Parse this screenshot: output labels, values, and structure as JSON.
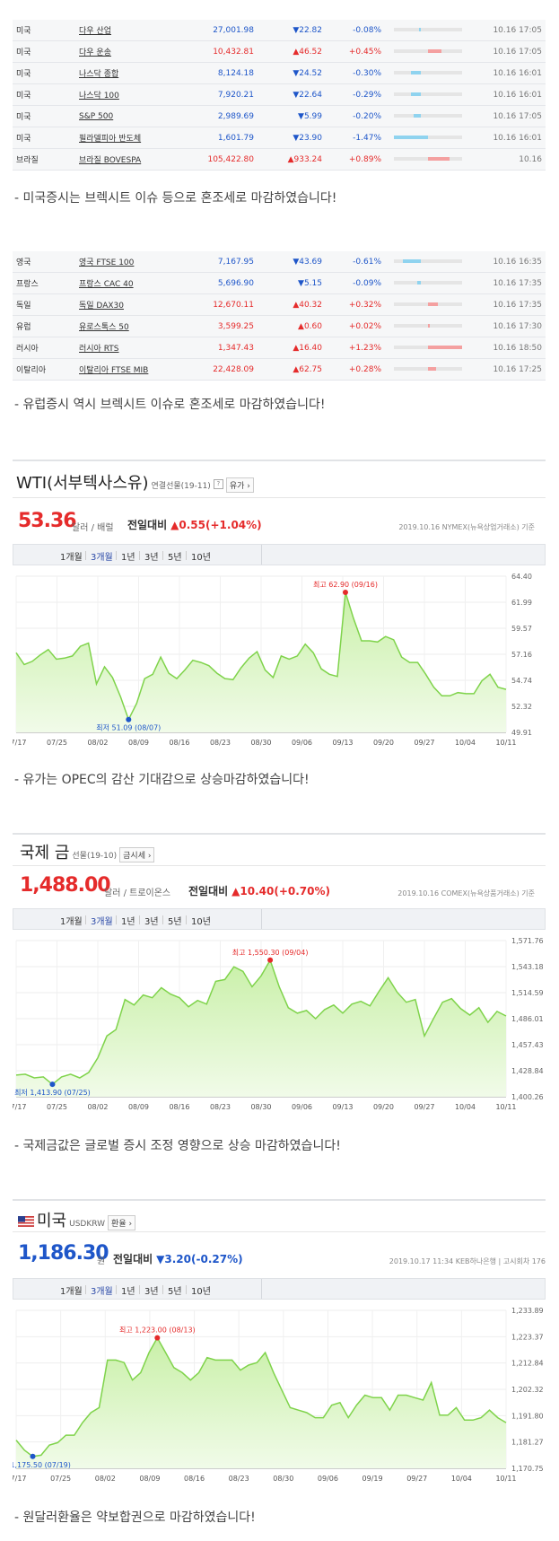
{
  "us_indices": [
    {
      "country": "미국",
      "name": "다우 산업",
      "price": "27,001.98",
      "dir": "dn",
      "change": "22.82",
      "rate": "-0.08%",
      "bar": 0.02,
      "time": "10.16 17:05"
    },
    {
      "country": "미국",
      "name": "다우 운송",
      "price": "10,432.81",
      "dir": "up",
      "change": "46.52",
      "rate": "+0.45%",
      "bar": 0.2,
      "time": "10.16 17:05"
    },
    {
      "country": "미국",
      "name": "나스닥 종합",
      "price": "8,124.18",
      "dir": "dn",
      "change": "24.52",
      "rate": "-0.30%",
      "bar": 0.14,
      "time": "10.16 16:01"
    },
    {
      "country": "미국",
      "name": "나스닥 100",
      "price": "7,920.21",
      "dir": "dn",
      "change": "22.64",
      "rate": "-0.29%",
      "bar": 0.14,
      "time": "10.16 16:01"
    },
    {
      "country": "미국",
      "name": "S&P 500",
      "price": "2,989.69",
      "dir": "dn",
      "change": "5.99",
      "rate": "-0.20%",
      "bar": 0.1,
      "time": "10.16 17:05"
    },
    {
      "country": "미국",
      "name": "필라델피아 반도체",
      "price": "1,601.79",
      "dir": "dn",
      "change": "23.90",
      "rate": "-1.47%",
      "bar": 0.5,
      "time": "10.16 16:01"
    },
    {
      "country": "브라질",
      "name": "브라질 BOVESPA",
      "price": "105,422.80",
      "dir": "up",
      "change": "933.24",
      "rate": "+0.89%",
      "bar": 0.32,
      "time": "10.16"
    }
  ],
  "comment_us": "- 미국증시는 브렉시트 이슈 등으로 혼조세로 마감하였습니다!",
  "eu_indices": [
    {
      "country": "영국",
      "name": "영국 FTSE 100",
      "price": "7,167.95",
      "dir": "dn",
      "change": "43.69",
      "rate": "-0.61%",
      "bar": 0.26,
      "time": "10.16 16:35"
    },
    {
      "country": "프랑스",
      "name": "프랑스 CAC 40",
      "price": "5,696.90",
      "dir": "dn",
      "change": "5.15",
      "rate": "-0.09%",
      "bar": 0.05,
      "time": "10.16 17:35"
    },
    {
      "country": "독일",
      "name": "독일 DAX30",
      "price": "12,670.11",
      "dir": "up",
      "change": "40.32",
      "rate": "+0.32%",
      "bar": 0.14,
      "time": "10.16 17:35"
    },
    {
      "country": "유럽",
      "name": "유로스톡스 50",
      "price": "3,599.25",
      "dir": "up",
      "change": "0.60",
      "rate": "+0.02%",
      "bar": 0.02,
      "time": "10.16 17:30"
    },
    {
      "country": "러시아",
      "name": "러시아 RTS",
      "price": "1,347.43",
      "dir": "up",
      "change": "16.40",
      "rate": "+1.23%",
      "bar": 0.5,
      "time": "10.16 18:50"
    },
    {
      "country": "이탈리아",
      "name": "이탈리아 FTSE MIB",
      "price": "22,428.09",
      "dir": "up",
      "change": "62.75",
      "rate": "+0.28%",
      "bar": 0.12,
      "time": "10.16 17:25"
    }
  ],
  "comment_eu": "- 유럽증시 역시 브렉시트 이슈로 혼조세로 마감하였습니다!",
  "symbols": {
    "up": "▲",
    "dn": "▼"
  },
  "colors": {
    "up": "#e52b2b",
    "down": "#1e56c9",
    "bar_up": "#f4a0a0",
    "bar_down": "#8fd3ef",
    "chart_line": "#7fd34b"
  },
  "tabs": [
    "1개월",
    "3개월",
    "1년",
    "3년",
    "5년",
    "10년"
  ],
  "wti": {
    "title": "WTI(서부텍사스유)",
    "subtitle": "연결선물(19-11)",
    "button": "유가",
    "price": "53.36",
    "unit": "달러 / 배럴",
    "change_label": "전일대비",
    "change": "▲0.55(+1.04%)",
    "source": "2019.10.16  NYMEX(뉴욕상업거래소) 기준"
  },
  "comment_wti": "- 유가는 OPEC의 감산 기대감으로 상승마감하였습니다!",
  "gold": {
    "title": "국제 금",
    "subtitle": "선물(19-10)",
    "button": "금시세",
    "price": "1,488.00",
    "unit": "달러 / 트로이온스",
    "change_label": "전일대비",
    "change": "▲10.40(+0.70%)",
    "source": "2019.10.16  COMEX(뉴욕상품거래소) 기준"
  },
  "comment_gold": "- 국제금값은 글로벌 증시 조정 영향으로 상승 마감하였습니다!",
  "usd": {
    "title": "미국",
    "subtitle": "USDKRW",
    "button": "환율",
    "price": "1,186.30",
    "unit": "원",
    "change_label": "전일대비",
    "change": "▼3.20(-0.27%)",
    "source": "2019.10.17 11:34  KEB하나은행 | 고시회차 176"
  },
  "comment_usd": "- 원달러환율은 약보합권으로 마감하였습니다!",
  "chart_data": [
    {
      "type": "area",
      "title": "WTI(서부텍사스유)",
      "x_ticks": [
        "07/17",
        "07/25",
        "08/02",
        "08/09",
        "08/16",
        "08/23",
        "08/30",
        "09/06",
        "09/13",
        "09/20",
        "09/27",
        "10/04",
        "10/11"
      ],
      "y_ticks": [
        "64.40",
        "61.99",
        "59.57",
        "57.16",
        "54.74",
        "52.32",
        "49.91"
      ],
      "ylim": [
        49.91,
        64.4
      ],
      "values": [
        57.3,
        56.2,
        56.5,
        57.1,
        57.6,
        56.7,
        56.8,
        57.0,
        57.9,
        58.2,
        54.4,
        56.0,
        55.0,
        53.2,
        51.1,
        52.6,
        54.9,
        55.3,
        56.9,
        55.4,
        54.9,
        55.7,
        56.6,
        56.4,
        56.1,
        55.4,
        54.9,
        54.8,
        55.9,
        56.8,
        57.4,
        55.7,
        55.0,
        57.0,
        56.7,
        57.0,
        58.1,
        57.3,
        55.8,
        55.3,
        55.1,
        62.9,
        60.5,
        58.4,
        58.4,
        58.3,
        58.8,
        58.5,
        56.9,
        56.4,
        56.4,
        55.3,
        54.1,
        53.3,
        53.3,
        53.6,
        53.5,
        53.5,
        54.7,
        55.3,
        54.1,
        53.9
      ],
      "annotations": [
        {
          "label": "최고 62.90 (09/16)",
          "index": 41
        },
        {
          "label": "최저 51.09 (08/07)",
          "index": 14
        }
      ],
      "grid": true
    },
    {
      "type": "area",
      "title": "국제 금",
      "x_ticks": [
        "07/17",
        "07/25",
        "08/02",
        "08/09",
        "08/16",
        "08/23",
        "08/30",
        "09/06",
        "09/13",
        "09/20",
        "09/27",
        "10/04",
        "10/11"
      ],
      "y_ticks": [
        "1,571.76",
        "1,543.18",
        "1,514.59",
        "1,486.01",
        "1,457.43",
        "1,428.84",
        "1,400.26"
      ],
      "ylim": [
        1400.26,
        1571.76
      ],
      "values": [
        1424,
        1425,
        1421,
        1422,
        1413.9,
        1422,
        1425,
        1421,
        1427,
        1443,
        1467,
        1474,
        1507,
        1501,
        1512,
        1509,
        1520,
        1513,
        1509,
        1499,
        1506,
        1502,
        1527,
        1529,
        1543,
        1538,
        1521,
        1533,
        1550.3,
        1521,
        1498,
        1492,
        1495,
        1486,
        1496,
        1501,
        1492,
        1502,
        1505,
        1500,
        1516,
        1531,
        1515,
        1504,
        1507,
        1467,
        1486,
        1504,
        1508,
        1497,
        1490,
        1498,
        1482,
        1494,
        1489
      ],
      "annotations": [
        {
          "label": "최고 1,550.30 (09/04)",
          "index": 28
        },
        {
          "label": "최저 1,413.90 (07/25)",
          "index": 4
        }
      ],
      "grid": true
    },
    {
      "type": "area",
      "title": "미국 USDKRW",
      "x_ticks": [
        "07/17",
        "07/25",
        "08/02",
        "08/09",
        "08/16",
        "08/23",
        "08/30",
        "09/06",
        "09/19",
        "09/27",
        "10/04",
        "10/11"
      ],
      "y_ticks": [
        "1,233.89",
        "1,223.37",
        "1,212.84",
        "1,202.32",
        "1,191.80",
        "1,181.27",
        "1,170.75"
      ],
      "ylim": [
        1170.75,
        1233.89
      ],
      "values": [
        1182,
        1178,
        1175.5,
        1176,
        1180,
        1181,
        1184,
        1184,
        1189,
        1193,
        1195,
        1214,
        1214,
        1213,
        1206,
        1209,
        1217,
        1222.9,
        1217,
        1211,
        1209,
        1206,
        1209,
        1215,
        1214,
        1214,
        1214,
        1210,
        1212,
        1213,
        1217,
        1209,
        1202,
        1195,
        1194,
        1193,
        1191,
        1191,
        1196,
        1197,
        1191,
        1196,
        1200,
        1199,
        1199,
        1194,
        1200,
        1200,
        1199,
        1198,
        1205,
        1192,
        1192,
        1195,
        1190,
        1190,
        1191,
        1194,
        1191,
        1189
      ],
      "annotations": [
        {
          "label": "최고 1,223.00 (08/13)",
          "index": 17
        },
        {
          "label": "최저 1,175.50 (07/19)",
          "index": 2
        }
      ],
      "grid": true
    }
  ]
}
